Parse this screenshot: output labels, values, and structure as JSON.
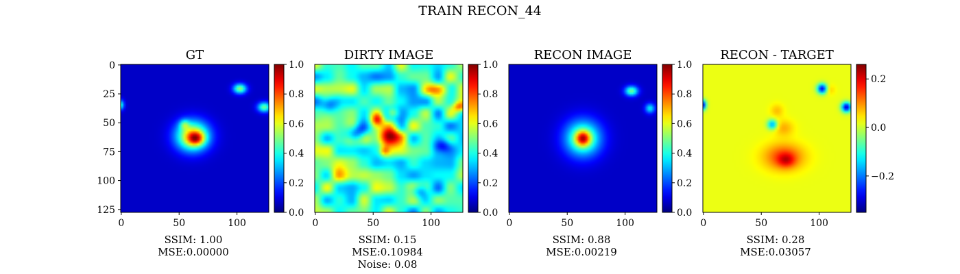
{
  "figure": {
    "suptitle": "TRAIN RECON_44"
  },
  "colors": {
    "colormap": "jet",
    "frame": "#000000",
    "background": "#ffffff"
  },
  "chart_data": [
    {
      "type": "heatmap",
      "title": "GT",
      "image_size": [
        128,
        128
      ],
      "xticks": [
        "0",
        "50",
        "100"
      ],
      "yticks": [
        "0",
        "25",
        "50",
        "75",
        "100",
        "125"
      ],
      "vrange": [
        0.0,
        1.0
      ],
      "colorbar_ticks": [
        "0.0",
        "0.2",
        "0.4",
        "0.6",
        "0.8",
        "1.0"
      ],
      "metrics": [
        "SSIM: 1.00",
        "MSE:0.00000"
      ],
      "background_value": 0.07,
      "blobs": [
        {
          "x": 62,
          "y": 62,
          "sx": 10,
          "sy": 9,
          "amp": 0.6
        },
        {
          "x": 65,
          "y": 64,
          "sx": 5,
          "sy": 4,
          "amp": 0.38
        },
        {
          "x": 55,
          "y": 52,
          "sx": 3,
          "sy": 3,
          "amp": 0.22
        },
        {
          "x": 103,
          "y": 21,
          "sx": 4,
          "sy": 3,
          "amp": 0.45
        },
        {
          "x": 124,
          "y": 37,
          "sx": 4,
          "sy": 3,
          "amp": 0.42
        },
        {
          "x": 0,
          "y": 35,
          "sx": 2,
          "sy": 3,
          "amp": 0.35
        }
      ]
    },
    {
      "type": "heatmap",
      "title": "DIRTY IMAGE",
      "image_size": [
        128,
        128
      ],
      "xticks": [
        "0",
        "50",
        "100"
      ],
      "yticks": [],
      "vrange": [
        0.0,
        1.0
      ],
      "colorbar_ticks": [
        "0.0",
        "0.2",
        "0.4",
        "0.6",
        "0.8",
        "1.0"
      ],
      "metrics": [
        "SSIM: 0.15",
        "MSE:0.10984",
        "Noise: 0.08"
      ],
      "background_value": 0.42,
      "blobs": [
        {
          "x": 65,
          "y": 62,
          "sx": 7,
          "sy": 6,
          "amp": 0.45
        },
        {
          "x": 54,
          "y": 48,
          "sx": 4,
          "sy": 4,
          "amp": 0.35
        },
        {
          "x": 67,
          "y": 42,
          "sx": 4,
          "sy": 3,
          "amp": 0.25
        },
        {
          "x": 60,
          "y": 75,
          "sx": 3,
          "sy": 3,
          "amp": 0.2
        },
        {
          "x": 105,
          "y": 22,
          "sx": 7,
          "sy": 4,
          "amp": 0.35
        },
        {
          "x": 125,
          "y": 37,
          "sx": 4,
          "sy": 3,
          "amp": 0.3
        },
        {
          "x": 35,
          "y": 60,
          "sx": 6,
          "sy": 5,
          "amp": -0.3
        },
        {
          "x": 12,
          "y": 35,
          "sx": 5,
          "sy": 5,
          "amp": -0.25
        },
        {
          "x": 90,
          "y": 110,
          "sx": 5,
          "sy": 4,
          "amp": -0.2
        },
        {
          "x": 110,
          "y": 70,
          "sx": 5,
          "sy": 4,
          "amp": -0.2
        },
        {
          "x": 20,
          "y": 95,
          "sx": 6,
          "sy": 5,
          "amp": 0.15
        }
      ],
      "noise_amplitude": 0.2
    },
    {
      "type": "heatmap",
      "title": "RECON IMAGE",
      "image_size": [
        128,
        128
      ],
      "xticks": [
        "0",
        "50",
        "100"
      ],
      "yticks": [],
      "vrange": [
        0.0,
        1.0
      ],
      "colorbar_ticks": [
        "0.0",
        "0.2",
        "0.4",
        "0.6",
        "0.8",
        "1.0"
      ],
      "metrics": [
        "SSIM: 0.88",
        "MSE:0.00219"
      ],
      "background_value": 0.07,
      "blobs": [
        {
          "x": 64,
          "y": 64,
          "sx": 11,
          "sy": 11,
          "amp": 0.45
        },
        {
          "x": 64,
          "y": 64,
          "sx": 4.5,
          "sy": 4.5,
          "amp": 0.45
        },
        {
          "x": 106,
          "y": 23,
          "sx": 4,
          "sy": 3,
          "amp": 0.42
        },
        {
          "x": 122,
          "y": 38,
          "sx": 3,
          "sy": 3,
          "amp": 0.3
        }
      ]
    },
    {
      "type": "heatmap",
      "title": "RECON - TARGET",
      "image_size": [
        128,
        128
      ],
      "xticks": [
        "0",
        "50",
        "100"
      ],
      "yticks": [],
      "vrange": [
        -0.35,
        0.26
      ],
      "colorbar_ticks": [
        "−0.2",
        "0.0",
        "0.2"
      ],
      "colorbar_tick_values": [
        -0.2,
        0.0,
        0.2
      ],
      "metrics": [
        "SSIM: 0.28",
        "MSE:0.03057"
      ],
      "background_value": 0.02,
      "blobs": [
        {
          "x": 70,
          "y": 80,
          "sx": 12,
          "sy": 8,
          "amp": 0.13
        },
        {
          "x": 72,
          "y": 83,
          "sx": 5,
          "sy": 4,
          "amp": 0.09
        },
        {
          "x": 60,
          "y": 52,
          "sx": 3,
          "sy": 3,
          "amp": -0.2
        },
        {
          "x": 70,
          "y": 55,
          "sx": 6,
          "sy": 5,
          "amp": 0.06
        },
        {
          "x": 64,
          "y": 40,
          "sx": 4,
          "sy": 4,
          "amp": 0.05
        },
        {
          "x": 103,
          "y": 21,
          "sx": 3,
          "sy": 3,
          "amp": -0.3
        },
        {
          "x": 124,
          "y": 37,
          "sx": 3,
          "sy": 3,
          "amp": -0.32
        },
        {
          "x": 0,
          "y": 35,
          "sx": 2,
          "sy": 3,
          "amp": -0.3
        },
        {
          "x": 110,
          "y": 22,
          "sx": 3,
          "sy": 3,
          "amp": 0.04
        }
      ]
    }
  ]
}
